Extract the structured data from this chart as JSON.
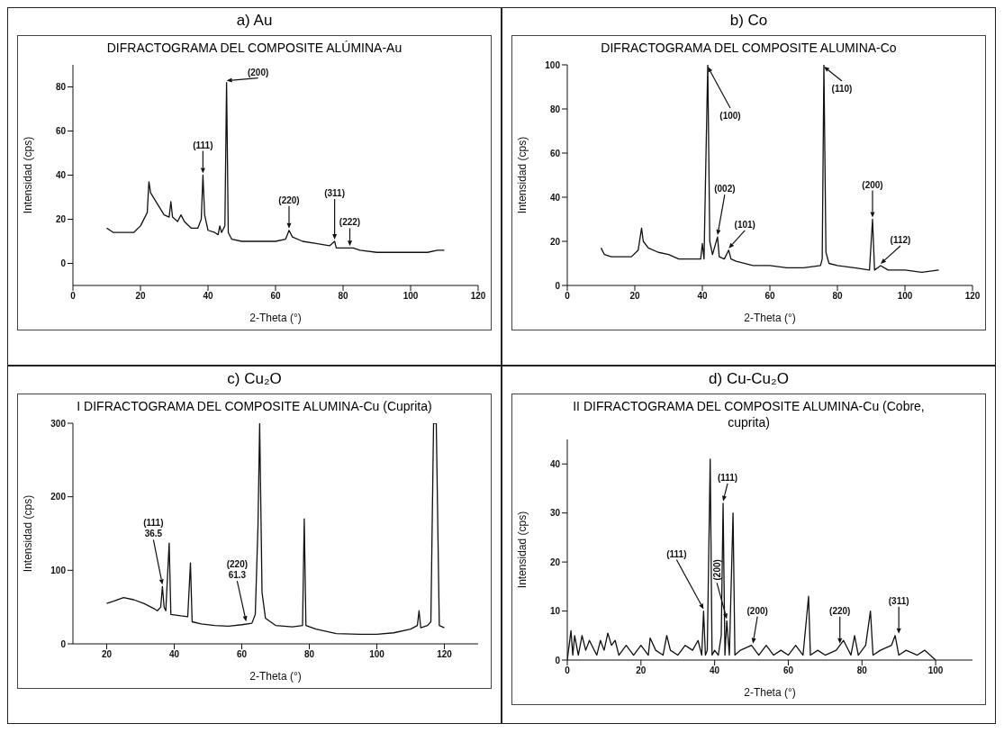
{
  "chart_data": [
    {
      "type": "line",
      "title": "a) Au",
      "subtitle": "DIFRACTOGRAMA DEL COMPOSITE ALÚMINA-Au",
      "xlabel": "2-Theta (°)",
      "ylabel": "Intensidad (cps)",
      "color": "#111111",
      "line_style": "solid",
      "x": [
        10,
        12,
        15,
        18,
        20,
        22,
        22.5,
        23,
        25,
        27,
        28.5,
        29,
        29.5,
        31,
        32,
        33,
        35,
        37,
        38,
        38.5,
        39,
        40,
        42,
        43,
        43.5,
        44,
        45,
        45.5,
        46,
        47,
        50,
        55,
        60,
        63,
        64,
        65,
        68,
        72,
        76,
        77.5,
        78,
        80,
        83,
        85,
        90,
        95,
        100,
        105,
        108,
        110
      ],
      "values": [
        16,
        14,
        14,
        14,
        17,
        23,
        37,
        32,
        27,
        22,
        21,
        28,
        21,
        19,
        22,
        19,
        16,
        16,
        20,
        40,
        22,
        15,
        14,
        13,
        17,
        14,
        17,
        82,
        14,
        11,
        10,
        10,
        10,
        11,
        15,
        12,
        10,
        9,
        8,
        10,
        7,
        7,
        7,
        6,
        5,
        5,
        5,
        5,
        6,
        6
      ],
      "xlim": [
        0,
        120
      ],
      "xticks": [
        0,
        20,
        40,
        60,
        80,
        100,
        120
      ],
      "ylim": [
        -10,
        90
      ],
      "yticks": [
        0,
        20,
        40,
        60,
        80
      ],
      "annotations": [
        {
          "text": "(200)",
          "x": 45.5,
          "y": 82
        },
        {
          "text": "(111)",
          "x": 38.5,
          "y": 40
        },
        {
          "text": "(220)",
          "x": 64,
          "y": 15
        },
        {
          "text": "(311)",
          "x": 77.5,
          "y": 10
        },
        {
          "text": "(222)",
          "x": 82,
          "y": 7
        }
      ]
    },
    {
      "type": "line",
      "title": "b) Co",
      "subtitle": "DIFRACTOGRAMA DEL COMPOSITE ALUMINA-Co",
      "xlabel": "2-Theta (°)",
      "ylabel": "Intensidad (cps)",
      "color": "#111111",
      "line_style": "solid",
      "x": [
        10,
        11,
        13,
        16,
        19,
        21,
        22,
        22.5,
        24,
        27,
        30,
        33,
        36,
        39.5,
        40,
        40.5,
        41,
        41.6,
        42.2,
        43,
        44.5,
        45,
        46.5,
        47.8,
        48.5,
        50,
        55,
        60,
        65,
        70,
        75,
        75.5,
        76,
        76.6,
        77.5,
        80,
        85,
        89.5,
        90.4,
        91,
        92.8,
        95,
        100,
        105,
        110
      ],
      "values": [
        17,
        14,
        13,
        13,
        13,
        16,
        26,
        20,
        17,
        15,
        14,
        12,
        12,
        12,
        19,
        12,
        53,
        100,
        20,
        14,
        22,
        13,
        12,
        16,
        12,
        11,
        9,
        9,
        8,
        8,
        9,
        12,
        100,
        15,
        10,
        9,
        8,
        7,
        30,
        7,
        9,
        7,
        7,
        6,
        7
      ],
      "xlim": [
        0,
        120
      ],
      "xticks": [
        0,
        20,
        40,
        60,
        80,
        100,
        120
      ],
      "ylim": [
        0,
        100
      ],
      "yticks": [
        0,
        20,
        40,
        60,
        80,
        100
      ],
      "annotations": [
        {
          "text": "(100)",
          "x": 41.6,
          "y": 100
        },
        {
          "text": "(002)",
          "x": 44.5,
          "y": 22
        },
        {
          "text": "(101)",
          "x": 47.8,
          "y": 16
        },
        {
          "text": "(110)",
          "x": 76,
          "y": 100
        },
        {
          "text": "(200)",
          "x": 90.4,
          "y": 30
        },
        {
          "text": "(112)",
          "x": 92.8,
          "y": 9
        }
      ]
    },
    {
      "type": "line",
      "title": "c) Cu₂O",
      "subtitle": "I DIFRACTOGRAMA DEL COMPOSITE ALUMINA-Cu (Cuprita)",
      "xlabel": "2-Theta (°)",
      "ylabel": "Intensidad (cps)",
      "color": "#111111",
      "line_style": "solid",
      "x": [
        20,
        22,
        25,
        28,
        31,
        34,
        35,
        36,
        36.5,
        37,
        37.5,
        38.5,
        39,
        42,
        44,
        44.8,
        45.3,
        48,
        52,
        56,
        60,
        63,
        64,
        64.8,
        65.3,
        66,
        67,
        70,
        75,
        78,
        78.5,
        79,
        82,
        88,
        95,
        100,
        105,
        110,
        112,
        112.5,
        113,
        115,
        116,
        116.8,
        117.6,
        118.5,
        120
      ],
      "values": [
        55,
        58,
        63,
        60,
        55,
        48,
        45,
        50,
        78,
        50,
        45,
        137,
        40,
        38,
        37,
        110,
        30,
        27,
        25,
        24,
        26,
        28,
        40,
        160,
        300,
        70,
        35,
        25,
        23,
        25,
        170,
        25,
        20,
        14,
        13,
        13,
        15,
        20,
        25,
        45,
        22,
        25,
        30,
        300,
        300,
        25,
        22
      ],
      "xlim": [
        10,
        130
      ],
      "xticks": [
        20,
        40,
        60,
        80,
        100,
        120
      ],
      "ylim": [
        0,
        300
      ],
      "yticks": [
        0,
        100,
        200,
        300
      ],
      "annotations": [
        {
          "text": "(111) 36.5",
          "x": 36.5,
          "y": 78
        },
        {
          "text": "(220) 61.3",
          "x": 61.3,
          "y": 28
        }
      ]
    },
    {
      "type": "line",
      "title": "d) Cu-Cu₂O",
      "subtitle": "II DIFRACTOGRAMA DEL COMPOSITE ALUMINA-Cu (Cobre, cuprita)",
      "xlabel": "2-Theta (°)",
      "ylabel": "Intensidad (cps)",
      "color": "#111111",
      "line_style": "solid",
      "x": [
        0,
        1,
        1.5,
        2,
        3,
        4,
        5,
        6,
        8,
        9,
        10,
        11,
        12,
        13,
        14,
        16,
        18,
        20,
        22,
        22.5,
        24,
        26,
        27,
        28,
        30,
        32,
        34,
        35.5,
        36.5,
        37,
        37.5,
        38,
        38.8,
        39.3,
        40,
        41,
        41.8,
        42.3,
        42.8,
        43.3,
        44,
        45,
        45.5,
        47,
        50,
        52,
        54,
        56,
        58,
        60,
        62,
        64,
        65.5,
        66,
        68,
        70,
        73,
        75,
        77,
        78,
        79,
        81,
        82.3,
        83,
        85,
        88,
        89,
        90,
        92,
        95,
        97,
        100
      ],
      "values": [
        0,
        6,
        1,
        5,
        1,
        5,
        2,
        4,
        1,
        4,
        2,
        5.5,
        3,
        4,
        1,
        3,
        1,
        3,
        1,
        4.5,
        2,
        1,
        5,
        2,
        1,
        3,
        2,
        4,
        1,
        10,
        1,
        2,
        41,
        1,
        2,
        1,
        5,
        32,
        1,
        8,
        1,
        30,
        1,
        2,
        3,
        1,
        3,
        1,
        2,
        1,
        3,
        1,
        13,
        1,
        2,
        1,
        2,
        4,
        1,
        5,
        1,
        3,
        10,
        1,
        2,
        3,
        5,
        1,
        2,
        1,
        2,
        0
      ],
      "xlim": [
        0,
        110
      ],
      "xticks": [
        0,
        20,
        40,
        60,
        80,
        100
      ],
      "ylim": [
        0,
        45
      ],
      "yticks": [
        0,
        10,
        20,
        30,
        40
      ],
      "annotations": [
        {
          "text": "(111)",
          "x": 37,
          "y": 10
        },
        {
          "text": "(111)",
          "x": 42.3,
          "y": 32
        },
        {
          "text": "(200)",
          "x": 43.3,
          "y": 8
        },
        {
          "text": "(200)",
          "x": 50.4,
          "y": 3
        },
        {
          "text": "(220)",
          "x": 74,
          "y": 3
        },
        {
          "text": "(311)",
          "x": 90,
          "y": 5
        }
      ]
    }
  ]
}
